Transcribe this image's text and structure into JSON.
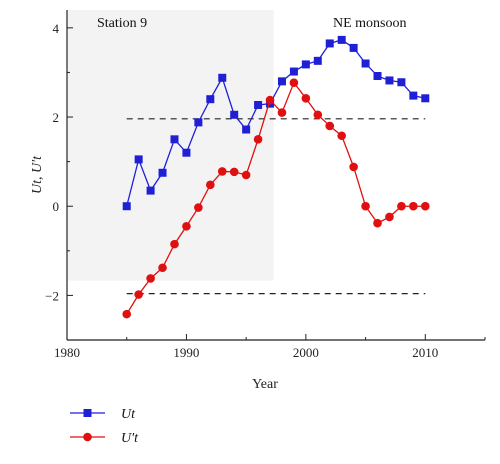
{
  "chart_data": {
    "type": "line",
    "xlabel": "Year",
    "ylabel": "Ut, U′t",
    "xlim": [
      1980,
      2015
    ],
    "ylim": [
      -3,
      4.4
    ],
    "xticks": [
      1980,
      1990,
      2000,
      2010
    ],
    "yticks": [
      -2,
      0,
      2,
      4
    ],
    "xtick_labels": [
      "1980",
      "1990",
      "2000",
      "2010"
    ],
    "ytick_labels": [
      "−2",
      "0",
      "2",
      "4"
    ],
    "annotations": {
      "left": "Station 9",
      "right": "NE monsoon"
    },
    "grid": false,
    "legend_position": "bottom-left",
    "reference_lines": [
      1.96,
      -1.96
    ],
    "shaded_region": {
      "x_end": 1997.3
    },
    "series": [
      {
        "name": "Ut",
        "color": "#1f1fd6",
        "marker": "square",
        "x": [
          1985,
          1986,
          1987,
          1988,
          1989,
          1990,
          1991,
          1992,
          1993,
          1994,
          1995,
          1996,
          1997,
          1998,
          1999,
          2000,
          2001,
          2002,
          2003,
          2004,
          2005,
          2006,
          2007,
          2008,
          2009,
          2010
        ],
        "values": [
          0.0,
          1.05,
          0.35,
          0.75,
          1.5,
          1.2,
          1.88,
          2.4,
          2.88,
          2.05,
          1.72,
          2.27,
          2.3,
          2.8,
          3.02,
          3.18,
          3.26,
          3.65,
          3.73,
          3.55,
          3.2,
          2.92,
          2.82,
          2.78,
          2.48,
          2.42
        ]
      },
      {
        "name": "U′t",
        "color": "#e01010",
        "marker": "circle",
        "x": [
          1985,
          1986,
          1987,
          1988,
          1989,
          1990,
          1991,
          1992,
          1993,
          1994,
          1995,
          1996,
          1997,
          1998,
          1999,
          2000,
          2001,
          2002,
          2003,
          2004,
          2005,
          2006,
          2007,
          2008,
          2009,
          2010
        ],
        "values": [
          -2.42,
          -1.98,
          -1.62,
          -1.38,
          -0.85,
          -0.45,
          -0.03,
          0.48,
          0.78,
          0.77,
          0.7,
          1.5,
          2.38,
          2.1,
          2.77,
          2.42,
          2.05,
          1.8,
          1.58,
          0.88,
          0.0,
          -0.38,
          -0.24,
          0.0,
          0.0,
          0.0
        ]
      }
    ]
  }
}
